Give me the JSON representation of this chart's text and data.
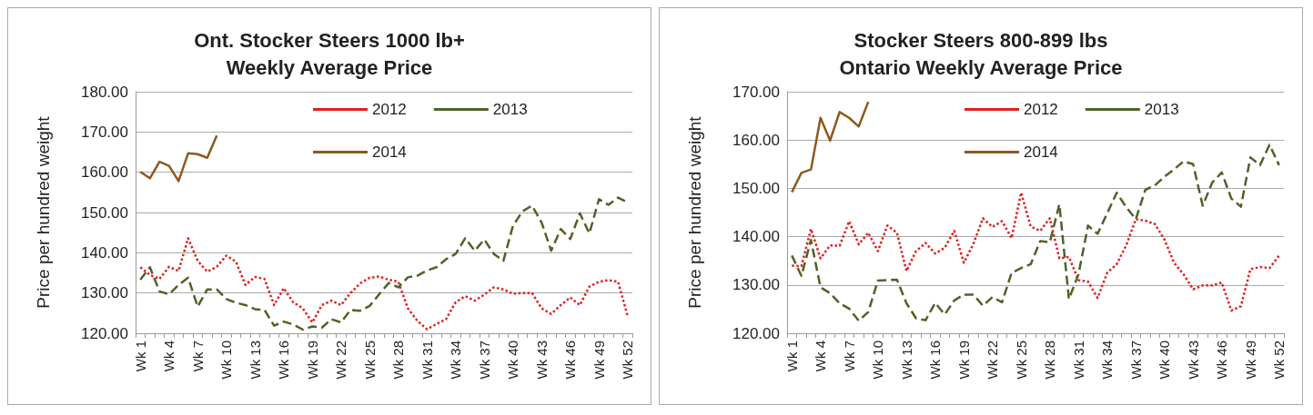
{
  "chart_data": [
    {
      "type": "line",
      "title": "Ont. Stocker Steers 1000 lb+\nWeekly Average Price",
      "ylabel": "Price per hundred weight",
      "categories": [
        "Wk 1",
        null,
        null,
        "Wk 4",
        null,
        null,
        "Wk 7",
        null,
        null,
        "Wk 10",
        null,
        null,
        "Wk 13",
        null,
        null,
        "Wk 16",
        null,
        null,
        "Wk 19",
        null,
        null,
        "Wk 22",
        null,
        null,
        "Wk 25",
        null,
        null,
        "Wk 28",
        null,
        null,
        "Wk 31",
        null,
        null,
        "Wk 34",
        null,
        null,
        "Wk 37",
        null,
        null,
        "Wk 40",
        null,
        null,
        "Wk 43",
        null,
        null,
        "Wk 46",
        null,
        null,
        "Wk 49",
        null,
        null,
        "Wk 52"
      ],
      "series": [
        {
          "name": "2012",
          "color": "#e0201e",
          "line_style": "dotted",
          "values": [
            136.4,
            134.5,
            133.5,
            136.5,
            135.5,
            143.6,
            138,
            135.3,
            136.5,
            139.3,
            137.8,
            132,
            134,
            133.5,
            127,
            131.2,
            127.7,
            126.2,
            122.7,
            127,
            128.1,
            127,
            130,
            132.4,
            133.8,
            134.1,
            133.3,
            132.8,
            126.2,
            123.1,
            121,
            122.3,
            123.5,
            127.7,
            129.2,
            128.1,
            129.6,
            131.4,
            130.9,
            129.8,
            130,
            130,
            126.2,
            124.8,
            127,
            128.9,
            127,
            131.6,
            132.8,
            133.2,
            132.8,
            124.3
          ]
        },
        {
          "name": "2013",
          "color": "#4f6228",
          "line_style": "dashed",
          "values": [
            133.3,
            136.4,
            130.4,
            129.7,
            132,
            133.8,
            126.6,
            130.9,
            130.9,
            128.5,
            127.6,
            127,
            126,
            125.8,
            121.9,
            122.9,
            122.2,
            120.9,
            121.7,
            121.4,
            123.5,
            122.7,
            125.8,
            125.6,
            126.8,
            129.7,
            132.5,
            131.4,
            133.9,
            134.3,
            135.6,
            136.4,
            138.4,
            139.7,
            143.6,
            140.5,
            143.3,
            139.7,
            138,
            146.7,
            150.3,
            151.7,
            147.5,
            140.5,
            145.9,
            143.4,
            149.8,
            144.8,
            153.3,
            151.9,
            153.7,
            152.5
          ]
        },
        {
          "name": "2014",
          "color": "#8c5a1e",
          "line_style": "solid",
          "values": [
            160.1,
            158.5,
            162.6,
            161.6,
            157.8,
            164.7,
            164.5,
            163.6,
            169.1,
            null,
            null,
            null,
            null,
            null,
            null,
            null,
            null,
            null,
            null,
            null,
            null,
            null,
            null,
            null,
            null,
            null,
            null,
            null,
            null,
            null,
            null,
            null,
            null,
            null,
            null,
            null,
            null,
            null,
            null,
            null,
            null,
            null,
            null,
            null,
            null,
            null,
            null,
            null,
            null,
            null,
            null,
            null
          ]
        }
      ],
      "ylim": [
        120,
        180
      ],
      "yticks": [
        {
          "value": 120,
          "label": "120.00"
        },
        {
          "value": 130,
          "label": "130.00"
        },
        {
          "value": 140,
          "label": "140.00"
        },
        {
          "value": 150,
          "label": "150.00"
        },
        {
          "value": 160,
          "label": "160.00"
        },
        {
          "value": 170,
          "label": "170.00"
        },
        {
          "value": 180,
          "label": "180.00"
        }
      ],
      "grid": "y",
      "legend": "top",
      "marker": "none"
    },
    {
      "type": "line",
      "title": "Stocker Steers 800-899 lbs\nOntario Weekly Average Price",
      "ylabel": "Price per hundred weight",
      "categories": [
        "Wk 1",
        null,
        null,
        "Wk 4",
        null,
        null,
        "Wk 7",
        null,
        null,
        "Wk 10",
        null,
        null,
        "Wk 13",
        null,
        null,
        "Wk 16",
        null,
        null,
        "Wk 19",
        null,
        null,
        "Wk 22",
        null,
        null,
        "Wk 25",
        null,
        null,
        "Wk 28",
        null,
        null,
        "Wk 31",
        null,
        null,
        "Wk 34",
        null,
        null,
        "Wk 37",
        null,
        null,
        "Wk 40",
        null,
        null,
        "Wk 43",
        null,
        null,
        "Wk 46",
        null,
        null,
        "Wk 49",
        null,
        null,
        "Wk 52"
      ],
      "series": [
        {
          "name": "2012",
          "color": "#e0201e",
          "line_style": "dotted",
          "values": [
            134,
            133.9,
            141.6,
            135.5,
            138.2,
            138.1,
            143.2,
            138.4,
            140.8,
            137,
            142.3,
            140.8,
            132.9,
            137,
            138.7,
            136.5,
            137.7,
            141.2,
            134.6,
            138.5,
            143.8,
            142,
            143.2,
            139.7,
            149.1,
            142.1,
            141.2,
            143.8,
            135.5,
            135.8,
            131,
            130.7,
            127.3,
            132.5,
            134.3,
            138.2,
            143.6,
            143.3,
            142.6,
            139.4,
            134.6,
            132.2,
            129.1,
            129.9,
            129.9,
            130.5,
            124.7,
            125.6,
            133.3,
            133.7,
            133.5,
            136.1
          ]
        },
        {
          "name": "2013",
          "color": "#4f6228",
          "line_style": "dashed",
          "values": [
            136.1,
            131.9,
            139.3,
            129.5,
            128.3,
            126.2,
            125.1,
            122.6,
            124.4,
            130.9,
            131,
            131.1,
            126.2,
            123.1,
            122.7,
            126.3,
            123.9,
            126.8,
            128,
            128,
            125.7,
            127.5,
            126.4,
            132.5,
            133.5,
            134.3,
            139.1,
            138.8,
            146.7,
            127.1,
            132.2,
            142.3,
            140.6,
            144.8,
            149.1,
            146.1,
            143.6,
            149.7,
            150.6,
            152.4,
            153.9,
            155.6,
            155,
            146.4,
            151.2,
            153.3,
            147.9,
            146.2,
            156.4,
            154.8,
            159,
            154.8
          ]
        },
        {
          "name": "2014",
          "color": "#8c5a1e",
          "line_style": "solid",
          "values": [
            149.2,
            153.2,
            153.9,
            164.6,
            159.9,
            165.8,
            164.6,
            162.8,
            167.9,
            null,
            null,
            null,
            null,
            null,
            null,
            null,
            null,
            null,
            null,
            null,
            null,
            null,
            null,
            null,
            null,
            null,
            null,
            null,
            null,
            null,
            null,
            null,
            null,
            null,
            null,
            null,
            null,
            null,
            null,
            null,
            null,
            null,
            null,
            null,
            null,
            null,
            null,
            null,
            null,
            null,
            null,
            null
          ]
        }
      ],
      "ylim": [
        120,
        170
      ],
      "yticks": [
        {
          "value": 120,
          "label": "120.00"
        },
        {
          "value": 130,
          "label": "130.00"
        },
        {
          "value": 140,
          "label": "140.00"
        },
        {
          "value": 150,
          "label": "150.00"
        },
        {
          "value": 160,
          "label": "160.00"
        },
        {
          "value": 170,
          "label": "170.00"
        }
      ],
      "grid": "y",
      "legend": "top",
      "marker": "none"
    }
  ]
}
